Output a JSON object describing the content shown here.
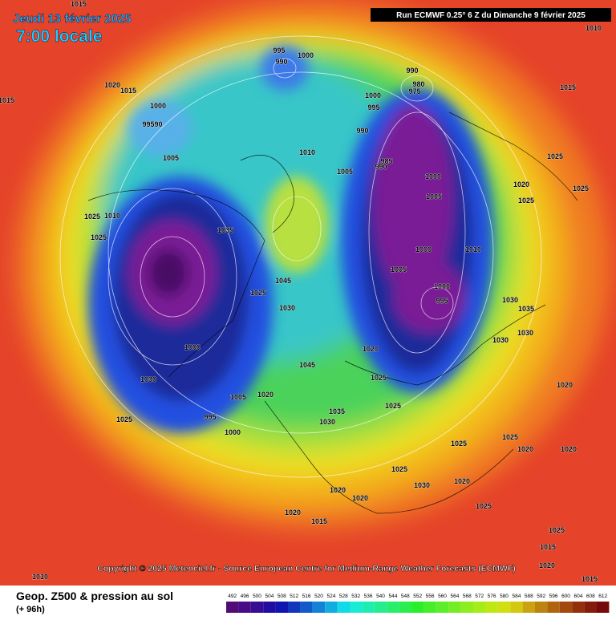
{
  "header": {
    "date": "Jeudi 13 février 2025",
    "time": "7:00 locale",
    "run": "Run ECMWF 0.25° 6 Z du Dimanche 9 février 2025"
  },
  "copyright": "Copyright © 2025 Meteociel.fr - Source European Centre for Medium-Range Weather Forecasts (ECMWF)",
  "footer": {
    "title": "Geop. Z500 & pression au sol",
    "lead": "(+ 96h)"
  },
  "scale_labels": [
    492,
    496,
    500,
    504,
    508,
    512,
    516,
    520,
    524,
    528,
    532,
    536,
    540,
    544,
    548,
    552,
    556,
    560,
    564,
    568,
    572,
    576,
    580,
    584,
    588,
    592,
    596,
    600,
    604,
    608,
    612
  ],
  "isobar_labels": [
    1015,
    1010,
    1020,
    1015,
    1015,
    1000,
    99590,
    1005,
    1010,
    1025,
    1025,
    1035,
    1045,
    1025,
    1030,
    1000,
    1030,
    1025,
    995,
    1000,
    1005,
    1020,
    1045,
    1035,
    1030,
    1020,
    1025,
    1025,
    1005,
    1000,
    995,
    1000,
    1010,
    1000,
    1005,
    990,
    985,
    990,
    1000,
    995,
    990,
    980,
    975,
    995,
    990,
    1000,
    1010,
    1005,
    1015,
    1025,
    1025,
    1020,
    1025,
    1030,
    1035,
    1030,
    1020,
    1030,
    1025,
    1020,
    1025,
    1020,
    1030,
    1025,
    1025,
    1020,
    1020,
    1020,
    1015,
    1010,
    1015,
    1020,
    1015,
    1020,
    1025
  ]
}
